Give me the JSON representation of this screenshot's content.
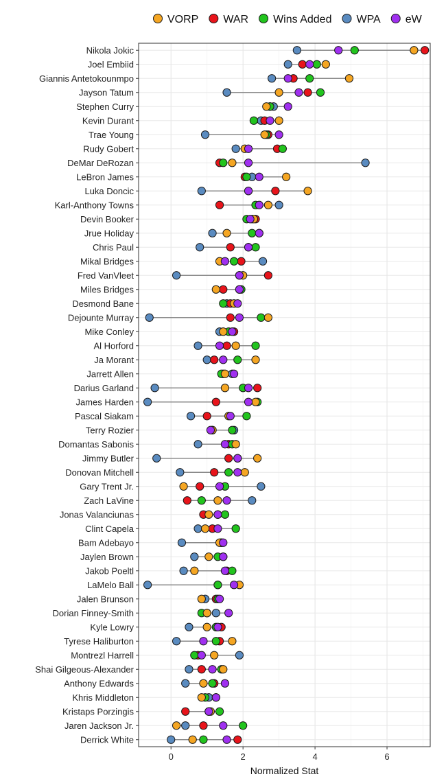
{
  "chart_data": {
    "type": "dumbbell-dot",
    "xlabel": "Normalized Stat",
    "xlim": [
      -0.9,
      7.2
    ],
    "xticks": [
      0,
      2,
      4,
      6
    ],
    "legend_position": "top",
    "legend": [
      {
        "name": "VORP",
        "color": "#F5A623"
      },
      {
        "name": "WAR",
        "color": "#E8141B"
      },
      {
        "name": "Wins Added",
        "color": "#22C41E"
      },
      {
        "name": "WPA",
        "color": "#5A8BC0"
      },
      {
        "name": "eW",
        "color": "#A030F0"
      }
    ],
    "series_order": [
      "WPA",
      "WAR",
      "Wins Added",
      "VORP",
      "eW"
    ],
    "players": [
      {
        "name": "Nikola Jokic",
        "VORP": 6.75,
        "WAR": 7.05,
        "Wins Added": 5.1,
        "WPA": 3.5,
        "eW": 4.65
      },
      {
        "name": "Joel Embiid",
        "VORP": 4.3,
        "WAR": 3.65,
        "Wins Added": 4.05,
        "WPA": 3.25,
        "eW": 3.85
      },
      {
        "name": "Giannis Antetokounmpo",
        "VORP": 4.95,
        "WAR": 3.4,
        "Wins Added": 3.85,
        "WPA": 2.8,
        "eW": 3.25
      },
      {
        "name": "Jayson Tatum",
        "VORP": 3.0,
        "WAR": 3.8,
        "Wins Added": 4.15,
        "WPA": 1.55,
        "eW": 3.55
      },
      {
        "name": "Stephen Curry",
        "VORP": 2.65,
        "WAR": 2.75,
        "Wins Added": 2.75,
        "WPA": 2.85,
        "eW": 3.25
      },
      {
        "name": "Kevin Durant",
        "VORP": 3.0,
        "WAR": 2.6,
        "Wins Added": 2.3,
        "WPA": 2.5,
        "eW": 2.75
      },
      {
        "name": "Trae Young",
        "VORP": 2.6,
        "WAR": 2.7,
        "Wins Added": 2.65,
        "WPA": 0.95,
        "eW": 3.0
      },
      {
        "name": "Rudy Gobert",
        "VORP": 2.05,
        "WAR": 2.95,
        "Wins Added": 3.1,
        "WPA": 1.8,
        "eW": 2.15
      },
      {
        "name": "DeMar DeRozan",
        "VORP": 1.7,
        "WAR": 1.35,
        "Wins Added": 1.45,
        "WPA": 5.4,
        "eW": 2.15
      },
      {
        "name": "LeBron James",
        "VORP": 3.2,
        "WAR": 2.05,
        "Wins Added": 2.1,
        "WPA": 2.25,
        "eW": 2.45
      },
      {
        "name": "Luka Doncic",
        "VORP": 3.8,
        "WAR": 2.9,
        "Wins Added": 2.15,
        "WPA": 0.85,
        "eW": 2.15
      },
      {
        "name": "Karl-Anthony Towns",
        "VORP": 2.7,
        "WAR": 1.35,
        "Wins Added": 2.35,
        "WPA": 3.0,
        "eW": 2.45
      },
      {
        "name": "Devin Booker",
        "VORP": 2.3,
        "WAR": 2.35,
        "Wins Added": 2.1,
        "WPA": 2.25,
        "eW": 2.2
      },
      {
        "name": "Jrue Holiday",
        "VORP": 1.55,
        "WAR": 2.45,
        "Wins Added": 2.25,
        "WPA": 1.15,
        "eW": 2.45
      },
      {
        "name": "Chris Paul",
        "VORP": 2.15,
        "WAR": 1.65,
        "Wins Added": 2.35,
        "WPA": 0.8,
        "eW": 2.15
      },
      {
        "name": "Mikal Bridges",
        "VORP": 1.35,
        "WAR": 1.95,
        "Wins Added": 1.75,
        "WPA": 2.55,
        "eW": 1.5
      },
      {
        "name": "Fred VanVleet",
        "VORP": 2.0,
        "WAR": 2.7,
        "Wins Added": 1.9,
        "WPA": 0.15,
        "eW": 1.9
      },
      {
        "name": "Miles Bridges",
        "VORP": 1.25,
        "WAR": 1.45,
        "Wins Added": 1.95,
        "WPA": 1.9,
        "eW": 1.9
      },
      {
        "name": "Desmond Bane",
        "VORP": 1.75,
        "WAR": 1.65,
        "Wins Added": 1.45,
        "WPA": 1.55,
        "eW": 1.85
      },
      {
        "name": "Dejounte Murray",
        "VORP": 2.7,
        "WAR": 1.65,
        "Wins Added": 2.5,
        "WPA": -0.6,
        "eW": 1.9
      },
      {
        "name": "Mike Conley",
        "VORP": 1.45,
        "WAR": 1.75,
        "Wins Added": 1.6,
        "WPA": 1.35,
        "eW": 1.7
      },
      {
        "name": "Al Horford",
        "VORP": 1.8,
        "WAR": 1.55,
        "Wins Added": 2.35,
        "WPA": 0.75,
        "eW": 1.35
      },
      {
        "name": "Ja Morant",
        "VORP": 2.35,
        "WAR": 1.2,
        "Wins Added": 1.85,
        "WPA": 1.0,
        "eW": 1.45
      },
      {
        "name": "Jarrett Allen",
        "VORP": 1.5,
        "WAR": 1.45,
        "Wins Added": 1.4,
        "WPA": 1.7,
        "eW": 1.75
      },
      {
        "name": "Darius Garland",
        "VORP": 1.5,
        "WAR": 2.4,
        "Wins Added": 2.0,
        "WPA": -0.45,
        "eW": 2.15
      },
      {
        "name": "James Harden",
        "VORP": 2.35,
        "WAR": 1.25,
        "Wins Added": 2.4,
        "WPA": -0.65,
        "eW": 2.15
      },
      {
        "name": "Pascal Siakam",
        "VORP": 1.6,
        "WAR": 1.0,
        "Wins Added": 2.1,
        "WPA": 0.55,
        "eW": 1.65
      },
      {
        "name": "Terry Rozier",
        "VORP": 1.15,
        "WAR": 1.15,
        "Wins Added": 1.7,
        "WPA": 1.75,
        "eW": 1.1
      },
      {
        "name": "Domantas Sabonis",
        "VORP": 1.8,
        "WAR": 1.6,
        "Wins Added": 1.7,
        "WPA": 0.75,
        "eW": 1.5
      },
      {
        "name": "Jimmy Butler",
        "VORP": 2.4,
        "WAR": 1.6,
        "Wins Added": 1.85,
        "WPA": -0.4,
        "eW": 1.85
      },
      {
        "name": "Donovan Mitchell",
        "VORP": 2.05,
        "WAR": 1.2,
        "Wins Added": 1.6,
        "WPA": 0.25,
        "eW": 1.85
      },
      {
        "name": "Gary Trent Jr.",
        "VORP": 0.35,
        "WAR": 0.8,
        "Wins Added": 1.5,
        "WPA": 2.5,
        "eW": 1.35
      },
      {
        "name": "Zach LaVine",
        "VORP": 1.3,
        "WAR": 0.45,
        "Wins Added": 0.85,
        "WPA": 2.25,
        "eW": 1.55
      },
      {
        "name": "Jonas Valanciunas",
        "VORP": 1.05,
        "WAR": 0.9,
        "Wins Added": 1.5,
        "WPA": 1.3,
        "eW": 1.3
      },
      {
        "name": "Clint Capela",
        "VORP": 0.95,
        "WAR": 1.15,
        "Wins Added": 1.8,
        "WPA": 0.75,
        "eW": 1.3
      },
      {
        "name": "Bam Adebayo",
        "VORP": 1.35,
        "WAR": 1.4,
        "Wins Added": 1.4,
        "WPA": 0.3,
        "eW": 1.45
      },
      {
        "name": "Jaylen Brown",
        "VORP": 1.05,
        "WAR": 1.45,
        "Wins Added": 1.3,
        "WPA": 0.65,
        "eW": 1.45
      },
      {
        "name": "Jakob Poeltl",
        "VORP": 0.65,
        "WAR": 1.55,
        "Wins Added": 1.7,
        "WPA": 0.35,
        "eW": 1.5
      },
      {
        "name": "LaMelo Ball",
        "VORP": 1.9,
        "WAR": 1.3,
        "Wins Added": 1.3,
        "WPA": -0.65,
        "eW": 1.75
      },
      {
        "name": "Jalen Brunson",
        "VORP": 0.85,
        "WAR": 1.25,
        "Wins Added": 1.3,
        "WPA": 0.95,
        "eW": 1.35
      },
      {
        "name": "Dorian Finney-Smith",
        "VORP": 1.0,
        "WAR": 1.0,
        "Wins Added": 0.85,
        "WPA": 1.25,
        "eW": 1.6
      },
      {
        "name": "Kyle Lowry",
        "VORP": 1.0,
        "WAR": 1.4,
        "Wins Added": 1.25,
        "WPA": 0.5,
        "eW": 1.3
      },
      {
        "name": "Tyrese Haliburton",
        "VORP": 1.7,
        "WAR": 1.35,
        "Wins Added": 1.25,
        "WPA": 0.15,
        "eW": 0.9
      },
      {
        "name": "Montrezl Harrell",
        "VORP": 1.2,
        "WAR": 0.75,
        "Wins Added": 0.65,
        "WPA": 1.9,
        "eW": 0.85
      },
      {
        "name": "Shai Gilgeous-Alexander",
        "VORP": 1.45,
        "WAR": 0.85,
        "Wins Added": 1.4,
        "WPA": 0.5,
        "eW": 1.15
      },
      {
        "name": "Anthony Edwards",
        "VORP": 0.9,
        "WAR": 1.2,
        "Wins Added": 1.15,
        "WPA": 0.4,
        "eW": 1.5
      },
      {
        "name": "Khris Middleton",
        "VORP": 0.85,
        "WAR": 1.25,
        "Wins Added": 0.95,
        "WPA": 1.05,
        "eW": 1.25
      },
      {
        "name": "Kristaps Porzingis",
        "VORP": 1.1,
        "WAR": 0.4,
        "Wins Added": 1.35,
        "WPA": 1.05,
        "eW": 1.05
      },
      {
        "name": "Jaren Jackson Jr.",
        "VORP": 0.15,
        "WAR": 0.9,
        "Wins Added": 2.0,
        "WPA": 0.4,
        "eW": 1.45
      },
      {
        "name": "Derrick White",
        "VORP": 0.6,
        "WAR": 1.85,
        "Wins Added": 0.9,
        "WPA": 0.0,
        "eW": 1.55
      }
    ]
  }
}
